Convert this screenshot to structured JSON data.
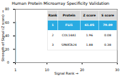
{
  "chart_data": {
    "type": "bar",
    "title": "Human Protein Microarray Specificity Validation",
    "xlabel": "Signal Rank",
    "ylabel": "Strength of Signal (Z score)",
    "x": [
      1
    ],
    "values": [
      61.05
    ],
    "color": "#29abe2",
    "xlim": [
      1,
      30
    ],
    "xticks": [
      1,
      10,
      20,
      30
    ],
    "ylim": [
      0,
      80
    ],
    "yticks": [
      0,
      20,
      40,
      60,
      80
    ],
    "table": {
      "headers": [
        "Rank",
        "Protein",
        "Z score",
        "S score"
      ],
      "rows": [
        [
          "1",
          "FLI1",
          "61.05",
          "79.09"
        ],
        [
          "2",
          "COL14A1",
          "1.96",
          "0.08"
        ],
        [
          "3",
          "SPARTA24",
          "1.88",
          "0.38"
        ]
      ],
      "header_color": "#d9d9d9",
      "highlight_color": "#29abe2"
    }
  }
}
